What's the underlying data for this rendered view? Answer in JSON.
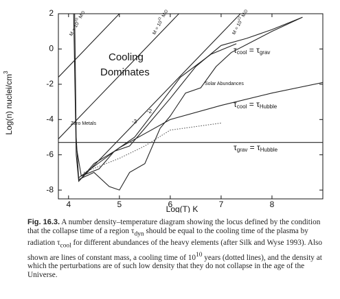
{
  "chart_data": {
    "type": "line",
    "xlabel": "Log(T) K",
    "ylabel": [
      "Log(n) nuclei/cm",
      "3"
    ],
    "xlim": [
      3.8,
      9
    ],
    "ylim": [
      -8.5,
      2
    ],
    "xticks": [
      4,
      5,
      6,
      7,
      8
    ],
    "yticks": [
      2,
      0,
      -2,
      -4,
      -6,
      -8
    ],
    "grid": false,
    "series": [
      {
        "color": "#222",
        "x": [
          3.8,
          5.0
        ],
        "values": [
          -1.6,
          2
        ]
      },
      {
        "color": "#222",
        "x": [
          3.8,
          6.17
        ],
        "values": [
          -5.1,
          2
        ]
      },
      {
        "color": "#222",
        "x": [
          4.2,
          7.38
        ],
        "values": [
          -7.5,
          2
        ]
      },
      {
        "color": "#222",
        "x": [
          3.8,
          9
        ],
        "values": [
          -5.3,
          -5.3
        ]
      },
      {
        "color": "#222",
        "x": [
          4.2,
          5.0,
          6.0,
          7.0,
          8.0,
          9.0
        ],
        "values": [
          -7.3,
          -5.6,
          -4.0,
          -3.2,
          -2.5,
          -1.9
        ]
      },
      {
        "color": "#222",
        "x": [
          4.1,
          4.15,
          4.2,
          4.5,
          4.9,
          5.2,
          5.5,
          6.0,
          6.5,
          7.0,
          7.5,
          8.0,
          8.6
        ],
        "values": [
          2,
          -6,
          -7.5,
          -6.5,
          -5.8,
          -5.5,
          -4.5,
          -2.8,
          -1.0,
          0.2,
          0.6,
          1.1,
          1.8
        ]
      },
      {
        "color": "#222",
        "x": [
          4.12,
          4.15,
          4.2,
          4.5,
          4.8,
          5.0,
          5.2,
          5.5,
          5.8,
          6.0,
          6.3,
          6.6,
          6.9,
          7.2,
          7.6,
          8.0,
          8.6
        ],
        "values": [
          2,
          -5,
          -7.4,
          -7.0,
          -7.8,
          -8.0,
          -7.0,
          -6.5,
          -4.5,
          -3.8,
          -2.5,
          -2.2,
          -1.0,
          -0.2,
          0.4,
          1.0,
          1.8
        ]
      },
      {
        "color": "#222",
        "x": [
          4.15,
          4.25,
          4.6,
          4.9,
          5.3,
          5.7,
          6.2,
          6.8,
          7.3
        ],
        "values": [
          -5.5,
          -7.2,
          -6.8,
          -5.8,
          -5.0,
          -3.5,
          -1.6,
          -0.3,
          0.3
        ]
      },
      {
        "color": "#555",
        "dotted": true,
        "x": [
          4.3,
          5.0,
          5.5,
          6.0,
          7.0
        ],
        "values": [
          -7.0,
          -6.2,
          -5.5,
          -4.6,
          -4.2
        ]
      }
    ],
    "labels": [
      [
        "M = 10",
        "10",
        " M",
        "⊙"
      ],
      [
        "M = 10",
        "11",
        " M",
        "⊙"
      ],
      [
        "M = 10",
        "12",
        " M",
        "⊙"
      ],
      [
        "τ",
        "cool",
        " = τ",
        "grav"
      ],
      [
        "τ",
        "cool",
        " = τ",
        "Hubble"
      ],
      [
        "τ",
        "grav",
        " = τ",
        "Hubble"
      ]
    ],
    "annotations": [
      "Cooling",
      "Dominates",
      "Solar Abundances",
      "Zero Metals",
      "-3",
      "-2"
    ]
  },
  "caption": {
    "label": "Fig. 16.3.",
    "text": [
      "A number density–temperature diagram showing the locus defined by the condition that the collapse time of a region τ",
      "dyn",
      " should be equal to the cooling time of the plasma by radiation τ",
      "cool",
      " for different abundances of the heavy elements (after Silk and Wyse 1993). Also shown are lines of constant mass, a cooling time of 10",
      "10",
      " years (dotted lines), and the density at which the perturbations are of such low density that they do not collapse in the age of the Universe."
    ]
  }
}
